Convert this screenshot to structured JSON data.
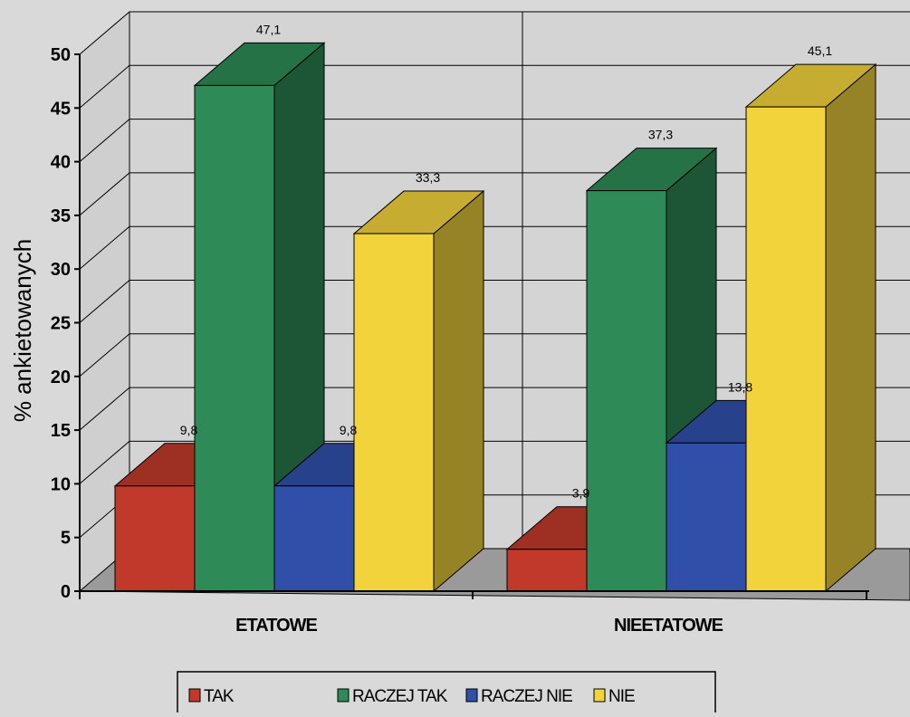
{
  "chart_data": {
    "type": "bar",
    "style": "3d-clustered",
    "ylabel": "% ankietowanych",
    "xlabel": "",
    "ylim": [
      0,
      50
    ],
    "yticks": [
      0,
      5,
      10,
      15,
      20,
      25,
      30,
      35,
      40,
      45,
      50
    ],
    "grid": true,
    "legend_position": "bottom",
    "categories": [
      "ETATOWE",
      "NIEETATOWE"
    ],
    "series": [
      {
        "name": "TAK",
        "color": "#c0392b",
        "values": [
          9.8,
          3.9
        ],
        "labels": [
          "9,8",
          "3,9"
        ]
      },
      {
        "name": "RACZEJ TAK",
        "color": "#2e8b57",
        "values": [
          47.1,
          37.3
        ],
        "labels": [
          "47,1",
          "37,3"
        ]
      },
      {
        "name": "RACZEJ NIE",
        "color": "#2f4fa8",
        "values": [
          9.8,
          13.8
        ],
        "labels": [
          "9,8",
          "13,8"
        ]
      },
      {
        "name": "NIE",
        "color": "#f2d33c",
        "values": [
          33.3,
          45.1
        ],
        "labels": [
          "33,3",
          "45,1"
        ]
      }
    ]
  }
}
